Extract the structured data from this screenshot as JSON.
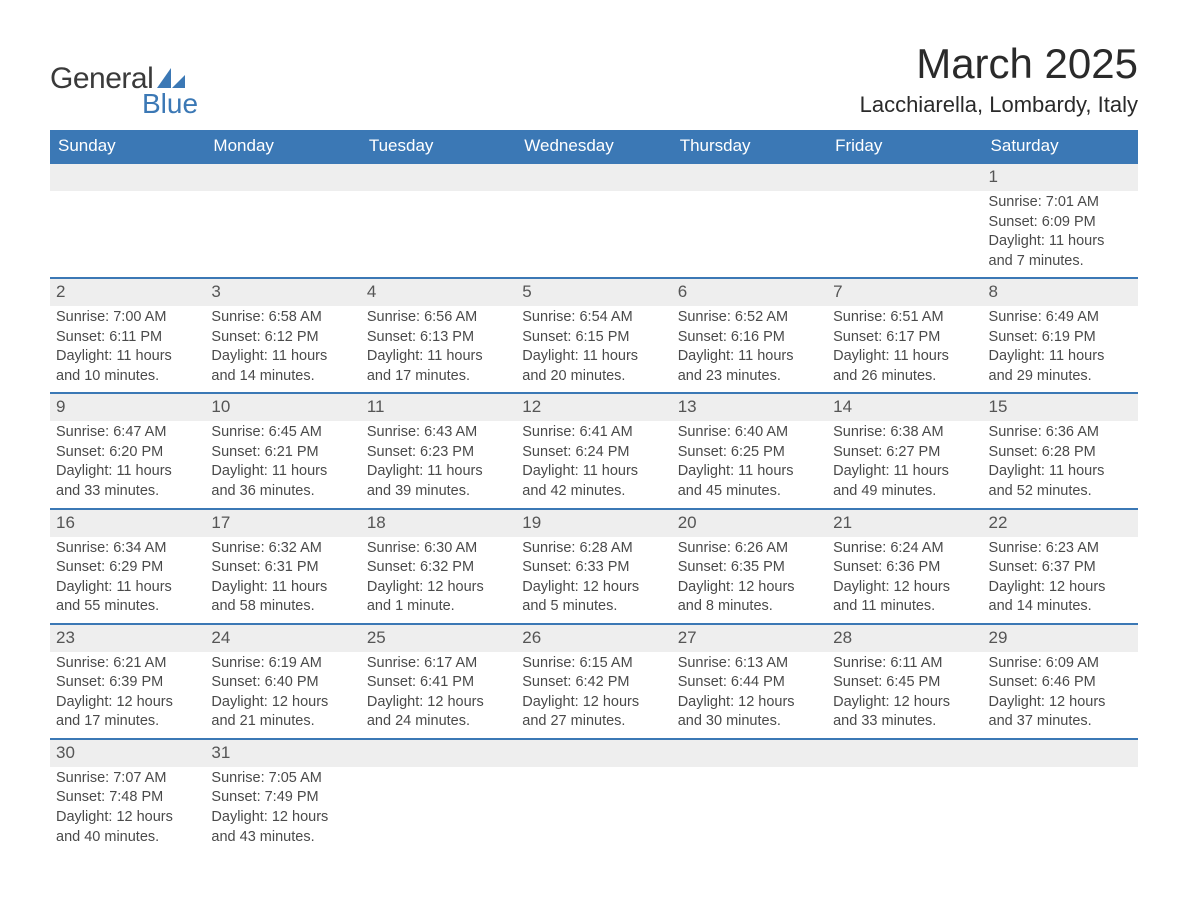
{
  "logo": {
    "text1": "General",
    "text2": "Blue",
    "accent_color": "#3b78b5"
  },
  "title": "March 2025",
  "location": "Lacchiarella, Lombardy, Italy",
  "colors": {
    "header_bg": "#3b78b5",
    "header_text": "#ffffff",
    "daynum_bg": "#eeeeee",
    "border": "#3b78b5",
    "body_text": "#4a4a4a"
  },
  "day_names": [
    "Sunday",
    "Monday",
    "Tuesday",
    "Wednesday",
    "Thursday",
    "Friday",
    "Saturday"
  ],
  "weeks": [
    [
      null,
      null,
      null,
      null,
      null,
      null,
      {
        "n": "1",
        "sunrise": "7:01 AM",
        "sunset": "6:09 PM",
        "daylight": "11 hours and 7 minutes."
      }
    ],
    [
      {
        "n": "2",
        "sunrise": "7:00 AM",
        "sunset": "6:11 PM",
        "daylight": "11 hours and 10 minutes."
      },
      {
        "n": "3",
        "sunrise": "6:58 AM",
        "sunset": "6:12 PM",
        "daylight": "11 hours and 14 minutes."
      },
      {
        "n": "4",
        "sunrise": "6:56 AM",
        "sunset": "6:13 PM",
        "daylight": "11 hours and 17 minutes."
      },
      {
        "n": "5",
        "sunrise": "6:54 AM",
        "sunset": "6:15 PM",
        "daylight": "11 hours and 20 minutes."
      },
      {
        "n": "6",
        "sunrise": "6:52 AM",
        "sunset": "6:16 PM",
        "daylight": "11 hours and 23 minutes."
      },
      {
        "n": "7",
        "sunrise": "6:51 AM",
        "sunset": "6:17 PM",
        "daylight": "11 hours and 26 minutes."
      },
      {
        "n": "8",
        "sunrise": "6:49 AM",
        "sunset": "6:19 PM",
        "daylight": "11 hours and 29 minutes."
      }
    ],
    [
      {
        "n": "9",
        "sunrise": "6:47 AM",
        "sunset": "6:20 PM",
        "daylight": "11 hours and 33 minutes."
      },
      {
        "n": "10",
        "sunrise": "6:45 AM",
        "sunset": "6:21 PM",
        "daylight": "11 hours and 36 minutes."
      },
      {
        "n": "11",
        "sunrise": "6:43 AM",
        "sunset": "6:23 PM",
        "daylight": "11 hours and 39 minutes."
      },
      {
        "n": "12",
        "sunrise": "6:41 AM",
        "sunset": "6:24 PM",
        "daylight": "11 hours and 42 minutes."
      },
      {
        "n": "13",
        "sunrise": "6:40 AM",
        "sunset": "6:25 PM",
        "daylight": "11 hours and 45 minutes."
      },
      {
        "n": "14",
        "sunrise": "6:38 AM",
        "sunset": "6:27 PM",
        "daylight": "11 hours and 49 minutes."
      },
      {
        "n": "15",
        "sunrise": "6:36 AM",
        "sunset": "6:28 PM",
        "daylight": "11 hours and 52 minutes."
      }
    ],
    [
      {
        "n": "16",
        "sunrise": "6:34 AM",
        "sunset": "6:29 PM",
        "daylight": "11 hours and 55 minutes."
      },
      {
        "n": "17",
        "sunrise": "6:32 AM",
        "sunset": "6:31 PM",
        "daylight": "11 hours and 58 minutes."
      },
      {
        "n": "18",
        "sunrise": "6:30 AM",
        "sunset": "6:32 PM",
        "daylight": "12 hours and 1 minute."
      },
      {
        "n": "19",
        "sunrise": "6:28 AM",
        "sunset": "6:33 PM",
        "daylight": "12 hours and 5 minutes."
      },
      {
        "n": "20",
        "sunrise": "6:26 AM",
        "sunset": "6:35 PM",
        "daylight": "12 hours and 8 minutes."
      },
      {
        "n": "21",
        "sunrise": "6:24 AM",
        "sunset": "6:36 PM",
        "daylight": "12 hours and 11 minutes."
      },
      {
        "n": "22",
        "sunrise": "6:23 AM",
        "sunset": "6:37 PM",
        "daylight": "12 hours and 14 minutes."
      }
    ],
    [
      {
        "n": "23",
        "sunrise": "6:21 AM",
        "sunset": "6:39 PM",
        "daylight": "12 hours and 17 minutes."
      },
      {
        "n": "24",
        "sunrise": "6:19 AM",
        "sunset": "6:40 PM",
        "daylight": "12 hours and 21 minutes."
      },
      {
        "n": "25",
        "sunrise": "6:17 AM",
        "sunset": "6:41 PM",
        "daylight": "12 hours and 24 minutes."
      },
      {
        "n": "26",
        "sunrise": "6:15 AM",
        "sunset": "6:42 PM",
        "daylight": "12 hours and 27 minutes."
      },
      {
        "n": "27",
        "sunrise": "6:13 AM",
        "sunset": "6:44 PM",
        "daylight": "12 hours and 30 minutes."
      },
      {
        "n": "28",
        "sunrise": "6:11 AM",
        "sunset": "6:45 PM",
        "daylight": "12 hours and 33 minutes."
      },
      {
        "n": "29",
        "sunrise": "6:09 AM",
        "sunset": "6:46 PM",
        "daylight": "12 hours and 37 minutes."
      }
    ],
    [
      {
        "n": "30",
        "sunrise": "7:07 AM",
        "sunset": "7:48 PM",
        "daylight": "12 hours and 40 minutes."
      },
      {
        "n": "31",
        "sunrise": "7:05 AM",
        "sunset": "7:49 PM",
        "daylight": "12 hours and 43 minutes."
      },
      null,
      null,
      null,
      null,
      null
    ]
  ],
  "labels": {
    "sunrise": "Sunrise: ",
    "sunset": "Sunset: ",
    "daylight": "Daylight: "
  }
}
